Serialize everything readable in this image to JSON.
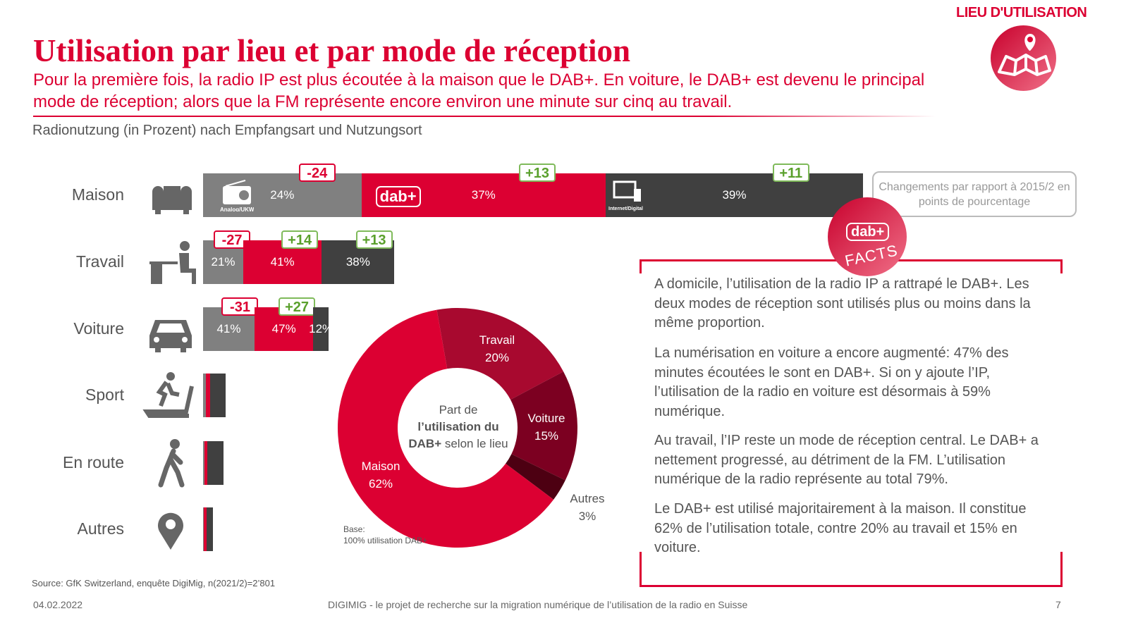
{
  "header": {
    "section": "LIEU D'UTILISATION",
    "title": "Utilisation par lieu et par mode de réception",
    "subtitle": "Pour la première fois, la radio IP est plus écoutée à la maison que le DAB+. En voiture, le DAB+ est devenu le principal mode de réception; alors que la FM représente encore environ une minute sur cinq au travail."
  },
  "chart_data": [
    {
      "type": "bar",
      "orientation": "horizontal-stacked",
      "title": "Radionutzung (in Prozent) nach Empfangsart und Nutzungsort",
      "series_icons": [
        "Analog/UKW",
        "dab+",
        "Internet/Digital"
      ],
      "colors": {
        "analog": "#808080",
        "dab": "#dc0032",
        "ip": "#404040"
      },
      "categories": [
        "Maison",
        "Travail",
        "Voiture",
        "Sport",
        "En route",
        "Autres"
      ],
      "volume_index": [
        100,
        29,
        19,
        3.4,
        3.1,
        1.5
      ],
      "rows": [
        {
          "analog": 24,
          "dab": 37,
          "ip": 39,
          "labels": [
            "24%",
            "37%",
            "39%"
          ],
          "changes": [
            "-24",
            "+13",
            "+11"
          ]
        },
        {
          "analog": 21,
          "dab": 41,
          "ip": 38,
          "labels": [
            "21%",
            "41%",
            "38%"
          ],
          "changes": [
            "-27",
            "+14",
            "+13"
          ]
        },
        {
          "analog": 41,
          "dab": 47,
          "ip": 12,
          "labels": [
            "41%",
            "47%",
            "12%"
          ],
          "changes": [
            "-31",
            "+27",
            ""
          ]
        },
        {
          "analog": 12,
          "dab": 19,
          "ip": 69,
          "labels": [
            "",
            "",
            ""
          ],
          "changes": [
            "",
            "",
            ""
          ]
        },
        {
          "analog": 7,
          "dab": 14,
          "ip": 79,
          "labels": [
            "",
            "",
            ""
          ],
          "changes": [
            "",
            "",
            ""
          ]
        },
        {
          "analog": 7,
          "dab": 29,
          "ip": 64,
          "labels": [
            "",
            "",
            ""
          ],
          "changes": [
            "",
            "",
            ""
          ]
        }
      ],
      "legend_note": "Changements par rapport à 2015/2 en points de pourcentage"
    },
    {
      "type": "pie",
      "donut": true,
      "center_label": {
        "line1": "Part de",
        "line2": "l’utilisation du",
        "line3_bold": "DAB+",
        "line3_rest": " selon le lieu"
      },
      "slices": [
        {
          "name": "Travail",
          "value": 20,
          "label": "20%",
          "color": "#a8092f"
        },
        {
          "name": "Voiture",
          "value": 15,
          "label": "15%",
          "color": "#7c0021"
        },
        {
          "name": "Autres",
          "value": 3,
          "label": "3%",
          "color": "#4d0012"
        },
        {
          "name": "Maison",
          "value": 62,
          "label": "62%",
          "color": "#dc0032"
        }
      ],
      "base_note": [
        "Base:",
        "100% utilisation DAB+"
      ]
    }
  ],
  "facts": {
    "badge_logo": "dab+",
    "badge_text": "FACTS",
    "paragraphs": [
      "A domicile, l’utilisation de la radio IP a rattrapé le DAB+. Les deux modes de réception sont utilisés plus ou moins dans la même proportion.",
      "La numérisation en voiture a encore augmenté: 47% des minutes écoutées le sont en DAB+. Si on y ajoute l’IP, l’utilisation de la radio en voiture est désormais à 59% numérique.",
      "Au travail, l’IP reste un mode de réception central. Le DAB+ a nettement progressé, au détriment de la FM. L’utilisation numérique de la radio représente au total 79%.",
      "Le DAB+ est utilisé majoritairement à la maison. Il constitue 62% de l’utilisation totale, contre 20% au travail et 15% en voiture."
    ]
  },
  "footer": {
    "source": "Source: GfK Switzerland, enquête DigiMig, n(2021/2)=2’801",
    "date": "04.02.2022",
    "center": "DIGIMIG - le projet de recherche sur la migration numérique de l’utilisation de la radio en Suisse",
    "page": "7"
  },
  "icons": [
    "map-pin-icon",
    "sofa-icon",
    "desk-worker-icon",
    "car-icon",
    "treadmill-icon",
    "walking-icon",
    "location-pin-icon",
    "radio-icon",
    "dab-logo-icon",
    "monitor-icon"
  ]
}
